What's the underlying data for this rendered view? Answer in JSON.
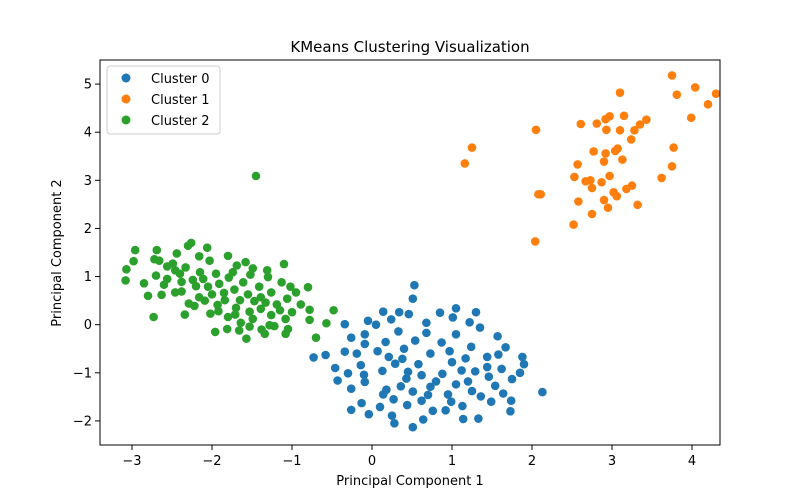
{
  "chart_data": {
    "type": "scatter",
    "title": "KMeans Clustering Visualization",
    "xlabel": "Principal Component 1",
    "ylabel": "Principal Component 2",
    "xlim": [
      -3.4,
      4.35
    ],
    "ylim": [
      -2.5,
      5.5
    ],
    "xticks": [
      -3,
      -2,
      -1,
      0,
      1,
      2,
      3,
      4
    ],
    "yticks": [
      -2,
      -1,
      0,
      1,
      2,
      3,
      4,
      5
    ],
    "grid": false,
    "legend": "top-left",
    "series": [
      {
        "name": "Cluster 0",
        "color": "#1f77b4",
        "points": [
          [
            0.53,
            0.82
          ],
          [
            0.51,
            0.54
          ],
          [
            0.34,
            0.26
          ],
          [
            0.68,
            0.04
          ],
          [
            0.85,
            0.25
          ],
          [
            1.05,
            0.34
          ],
          [
            1.3,
            0.26
          ],
          [
            1.01,
            0.15
          ],
          [
            1.22,
            0.05
          ],
          [
            0.46,
            0.22
          ],
          [
            0.14,
            0.27
          ],
          [
            0.24,
            0.11
          ],
          [
            -0.05,
            0.08
          ],
          [
            -0.34,
            0.01
          ],
          [
            -0.26,
            -0.27
          ],
          [
            -0.58,
            -0.63
          ],
          [
            -0.46,
            -0.9
          ],
          [
            -0.73,
            -0.68
          ],
          [
            -0.19,
            -0.6
          ],
          [
            -0.09,
            -0.2
          ],
          [
            0.05,
            0.0
          ],
          [
            0.33,
            -0.14
          ],
          [
            0.68,
            -0.17
          ],
          [
            1.05,
            -0.2
          ],
          [
            1.35,
            -0.06
          ],
          [
            1.57,
            -0.24
          ],
          [
            1.67,
            -0.47
          ],
          [
            1.58,
            -0.62
          ],
          [
            1.88,
            -0.67
          ],
          [
            1.9,
            -0.82
          ],
          [
            1.85,
            -1.0
          ],
          [
            1.75,
            -1.13
          ],
          [
            1.46,
            -1.08
          ],
          [
            1.29,
            -0.97
          ],
          [
            1.17,
            -0.7
          ],
          [
            0.97,
            -0.55
          ],
          [
            0.73,
            -0.6
          ],
          [
            0.58,
            -0.82
          ],
          [
            0.4,
            -0.5
          ],
          [
            0.17,
            -0.36
          ],
          [
            -0.09,
            -0.4
          ],
          [
            -0.14,
            -0.84
          ],
          [
            -0.3,
            -1.01
          ],
          [
            -0.43,
            -1.16
          ],
          [
            -0.26,
            -1.33
          ],
          [
            -0.09,
            -1.19
          ],
          [
            0.13,
            -0.96
          ],
          [
            0.29,
            -0.81
          ],
          [
            0.43,
            -1.12
          ],
          [
            0.51,
            -1.39
          ],
          [
            0.27,
            -1.55
          ],
          [
            0.1,
            -1.71
          ],
          [
            -0.13,
            -1.63
          ],
          [
            -0.26,
            -1.77
          ],
          [
            -0.04,
            -1.86
          ],
          [
            0.25,
            -1.89
          ],
          [
            0.28,
            -2.05
          ],
          [
            0.51,
            -2.13
          ],
          [
            0.64,
            -1.97
          ],
          [
            0.76,
            -1.79
          ],
          [
            0.92,
            -1.78
          ],
          [
            1.13,
            -1.69
          ],
          [
            1.14,
            -1.96
          ],
          [
            1.33,
            -1.95
          ],
          [
            1.36,
            -1.49
          ],
          [
            1.49,
            -1.6
          ],
          [
            1.64,
            -1.43
          ],
          [
            1.73,
            -1.8
          ],
          [
            2.13,
            -1.4
          ],
          [
            1.74,
            -1.58
          ],
          [
            1.54,
            -1.27
          ],
          [
            1.25,
            -1.38
          ],
          [
            1.05,
            -1.24
          ],
          [
            0.88,
            -1.02
          ],
          [
            0.73,
            -1.29
          ],
          [
            0.95,
            -1.45
          ],
          [
            0.62,
            -1.58
          ],
          [
            0.36,
            -1.28
          ],
          [
            0.21,
            -0.67
          ],
          [
            0.54,
            -0.33
          ],
          [
            0.87,
            -0.37
          ],
          [
            1.24,
            -0.46
          ],
          [
            1.44,
            -0.67
          ],
          [
            1.12,
            -0.95
          ],
          [
            0.8,
            -1.18
          ],
          [
            0.45,
            -0.98
          ],
          [
            0.62,
            -1.05
          ],
          [
            1.0,
            -0.78
          ],
          [
            0.38,
            -0.71
          ],
          [
            0.07,
            -0.55
          ],
          [
            -0.1,
            -1.04
          ],
          [
            0.18,
            -1.35
          ],
          [
            0.7,
            -1.46
          ],
          [
            1.2,
            -1.18
          ],
          [
            1.44,
            -0.88
          ],
          [
            1.62,
            -0.92
          ],
          [
            0.99,
            -1.6
          ],
          [
            0.44,
            -1.67
          ],
          [
            0.14,
            -1.45
          ],
          [
            -0.34,
            -0.56
          ]
        ]
      },
      {
        "name": "Cluster 1",
        "color": "#ff7f0e",
        "points": [
          [
            3.75,
            5.18
          ],
          [
            3.81,
            4.78
          ],
          [
            4.04,
            4.93
          ],
          [
            4.3,
            4.8
          ],
          [
            4.2,
            4.58
          ],
          [
            3.1,
            4.82
          ],
          [
            3.99,
            4.3
          ],
          [
            3.43,
            4.26
          ],
          [
            3.35,
            4.16
          ],
          [
            3.28,
            4.04
          ],
          [
            2.97,
            4.33
          ],
          [
            3.15,
            4.34
          ],
          [
            2.81,
            4.18
          ],
          [
            2.92,
            4.27
          ],
          [
            2.61,
            4.17
          ],
          [
            2.05,
            4.05
          ],
          [
            2.93,
            4.05
          ],
          [
            3.1,
            4.04
          ],
          [
            3.24,
            3.85
          ],
          [
            2.77,
            3.6
          ],
          [
            2.92,
            3.56
          ],
          [
            3.07,
            3.66
          ],
          [
            3.13,
            3.43
          ],
          [
            2.9,
            3.39
          ],
          [
            2.57,
            3.33
          ],
          [
            2.53,
            3.07
          ],
          [
            2.67,
            2.98
          ],
          [
            2.75,
            2.84
          ],
          [
            2.87,
            2.96
          ],
          [
            2.97,
            3.09
          ],
          [
            3.02,
            2.75
          ],
          [
            3.18,
            2.82
          ],
          [
            3.25,
            2.89
          ],
          [
            3.06,
            2.67
          ],
          [
            2.9,
            2.59
          ],
          [
            2.58,
            2.56
          ],
          [
            2.75,
            2.3
          ],
          [
            2.95,
            2.43
          ],
          [
            3.32,
            2.49
          ],
          [
            2.52,
            2.08
          ],
          [
            2.08,
            2.71
          ],
          [
            2.11,
            2.71
          ],
          [
            2.04,
            1.73
          ],
          [
            1.25,
            3.68
          ],
          [
            1.16,
            3.35
          ],
          [
            3.77,
            3.68
          ],
          [
            3.75,
            3.29
          ],
          [
            3.62,
            3.05
          ],
          [
            3.04,
            3.61
          ],
          [
            2.73,
            3.0
          ]
        ]
      },
      {
        "name": "Cluster 2",
        "color": "#2ca02c",
        "points": [
          [
            -1.45,
            3.09
          ],
          [
            -2.96,
            1.55
          ],
          [
            -2.98,
            1.32
          ],
          [
            -3.07,
            1.15
          ],
          [
            -3.08,
            0.92
          ],
          [
            -2.85,
            0.86
          ],
          [
            -2.8,
            0.6
          ],
          [
            -2.63,
            0.62
          ],
          [
            -2.73,
            0.16
          ],
          [
            -2.46,
            0.67
          ],
          [
            -2.34,
            0.21
          ],
          [
            -2.29,
            0.44
          ],
          [
            -2.22,
            0.39
          ],
          [
            -2.09,
            0.5
          ],
          [
            -1.92,
            0.28
          ],
          [
            -1.81,
            -0.09
          ],
          [
            -1.96,
            -0.15
          ],
          [
            -1.66,
            -0.12
          ],
          [
            -1.57,
            -0.29
          ],
          [
            -1.53,
            -0.04
          ],
          [
            -1.34,
            -0.19
          ],
          [
            -1.22,
            -0.03
          ],
          [
            -1.05,
            -0.09
          ],
          [
            -1.08,
            0.12
          ],
          [
            -1.26,
            0.2
          ],
          [
            -1.39,
            0.33
          ],
          [
            -1.53,
            0.27
          ],
          [
            -1.7,
            0.35
          ],
          [
            -1.84,
            0.51
          ],
          [
            -2.0,
            0.63
          ],
          [
            -2.2,
            0.8
          ],
          [
            -2.38,
            0.89
          ],
          [
            -2.56,
            0.95
          ],
          [
            -2.7,
            1.02
          ],
          [
            -2.72,
            1.36
          ],
          [
            -2.49,
            1.27
          ],
          [
            -2.33,
            1.19
          ],
          [
            -2.15,
            1.09
          ],
          [
            -1.95,
            1.06
          ],
          [
            -1.79,
            0.98
          ],
          [
            -1.61,
            0.88
          ],
          [
            -1.41,
            0.79
          ],
          [
            -1.26,
            0.67
          ],
          [
            -1.06,
            0.54
          ],
          [
            -0.89,
            0.42
          ],
          [
            -0.78,
            0.31
          ],
          [
            -0.78,
            0.1
          ],
          [
            -0.57,
            0.03
          ],
          [
            -0.48,
            0.3
          ],
          [
            -0.7,
            -0.27
          ],
          [
            -0.8,
            0.78
          ],
          [
            -1.02,
            0.79
          ],
          [
            -1.1,
            1.26
          ],
          [
            -1.31,
            1.13
          ],
          [
            -1.49,
            1.17
          ],
          [
            -1.58,
            1.3
          ],
          [
            -1.69,
            1.23
          ],
          [
            -1.8,
            1.43
          ],
          [
            -2.03,
            1.33
          ],
          [
            -2.16,
            1.42
          ],
          [
            -2.3,
            1.64
          ],
          [
            -2.06,
            1.6
          ],
          [
            -2.26,
            1.7
          ],
          [
            -2.44,
            1.48
          ],
          [
            -2.66,
            1.33
          ],
          [
            -2.69,
            1.55
          ],
          [
            -2.56,
            1.21
          ],
          [
            -2.4,
            1.06
          ],
          [
            -2.11,
            0.95
          ],
          [
            -1.91,
            0.85
          ],
          [
            -1.72,
            0.73
          ],
          [
            -1.55,
            0.63
          ],
          [
            -1.39,
            0.57
          ],
          [
            -1.19,
            0.42
          ],
          [
            -1.0,
            0.26
          ],
          [
            -1.15,
            0.3
          ],
          [
            -1.33,
            0.46
          ],
          [
            -1.47,
            0.49
          ],
          [
            -1.65,
            0.51
          ],
          [
            -1.85,
            0.66
          ],
          [
            -2.05,
            0.79
          ],
          [
            -2.24,
            0.93
          ],
          [
            -2.46,
            1.13
          ],
          [
            -2.6,
            0.83
          ],
          [
            -2.38,
            0.69
          ],
          [
            -2.16,
            0.57
          ],
          [
            -1.93,
            0.41
          ],
          [
            -1.71,
            0.21
          ],
          [
            -1.49,
            0.12
          ],
          [
            -1.28,
            -0.01
          ],
          [
            -1.08,
            -0.19
          ],
          [
            -1.38,
            -0.1
          ],
          [
            -1.64,
            0.04
          ],
          [
            -1.8,
            0.16
          ],
          [
            -2.02,
            0.23
          ],
          [
            -1.74,
            1.09
          ],
          [
            -1.52,
            1.04
          ],
          [
            -1.3,
            0.99
          ],
          [
            -1.13,
            0.88
          ],
          [
            -0.95,
            0.67
          ]
        ]
      }
    ]
  }
}
